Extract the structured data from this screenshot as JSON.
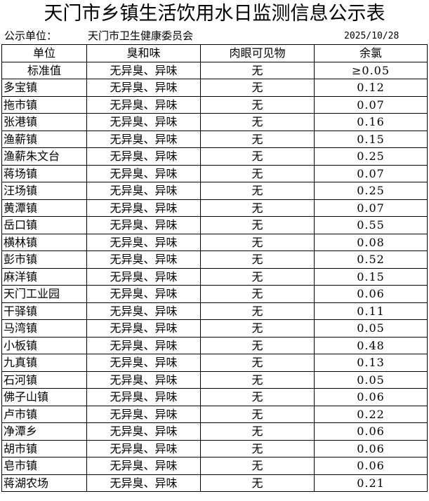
{
  "title": "天门市乡镇生活饮用水日监测信息公示表",
  "info": {
    "unit_label": "公示单位：",
    "unit_value": "天门市卫生健康委员会",
    "date": "2025/10/28"
  },
  "headers": [
    "单位",
    "臭和味",
    "肉眼可见物",
    "余氯"
  ],
  "standard": {
    "name": "标准值",
    "odor": "无异臭、异味",
    "visible": "无",
    "chlorine": "≥0.05"
  },
  "rows": [
    {
      "name": "多宝镇",
      "odor": "无异臭、异味",
      "visible": "无",
      "chlorine": "0.12"
    },
    {
      "name": "拖市镇",
      "odor": "无异臭、异味",
      "visible": "无",
      "chlorine": "0.07"
    },
    {
      "name": "张港镇",
      "odor": "无异臭、异味",
      "visible": "无",
      "chlorine": "0.16"
    },
    {
      "name": "渔薪镇",
      "odor": "无异臭、异味",
      "visible": "无",
      "chlorine": "0.15"
    },
    {
      "name": "渔薪朱文台",
      "odor": "无异臭、异味",
      "visible": "无",
      "chlorine": "0.25"
    },
    {
      "name": "蒋场镇",
      "odor": "无异臭、异味",
      "visible": "无",
      "chlorine": "0.07"
    },
    {
      "name": "汪场镇",
      "odor": "无异臭、异味",
      "visible": "无",
      "chlorine": "0.25"
    },
    {
      "name": "黄潭镇",
      "odor": "无异臭、异味",
      "visible": "无",
      "chlorine": "0.07"
    },
    {
      "name": "岳口镇",
      "odor": "无异臭、异味",
      "visible": "无",
      "chlorine": "0.55"
    },
    {
      "name": "横林镇",
      "odor": "无异臭、异味",
      "visible": "无",
      "chlorine": "0.08"
    },
    {
      "name": "彭市镇",
      "odor": "无异臭、异味",
      "visible": "无",
      "chlorine": "0.52"
    },
    {
      "name": "麻洋镇",
      "odor": "无异臭、异味",
      "visible": "无",
      "chlorine": "0.15"
    },
    {
      "name": "天门工业园",
      "odor": "无异臭、异味",
      "visible": "无",
      "chlorine": "0.06"
    },
    {
      "name": "干驿镇",
      "odor": "无异臭、异味",
      "visible": "无",
      "chlorine": "0.11"
    },
    {
      "name": "马湾镇",
      "odor": "无异臭、异味",
      "visible": "无",
      "chlorine": "0.05"
    },
    {
      "name": "小板镇",
      "odor": "无异臭、异味",
      "visible": "无",
      "chlorine": "0.48"
    },
    {
      "name": "九真镇",
      "odor": "无异臭、异味",
      "visible": "无",
      "chlorine": "0.13"
    },
    {
      "name": "石河镇",
      "odor": "无异臭、异味",
      "visible": "无",
      "chlorine": "0.05"
    },
    {
      "name": "佛子山镇",
      "odor": "无异臭、异味",
      "visible": "无",
      "chlorine": "0.06"
    },
    {
      "name": "卢市镇",
      "odor": "无异臭、异味",
      "visible": "无",
      "chlorine": "0.22"
    },
    {
      "name": "净潭乡",
      "odor": "无异臭、异味",
      "visible": "无",
      "chlorine": "0.06"
    },
    {
      "name": "胡市镇",
      "odor": "无异臭、异味",
      "visible": "无",
      "chlorine": "0.06"
    },
    {
      "name": "皂市镇",
      "odor": "无异臭、异味",
      "visible": "无",
      "chlorine": "0.06"
    },
    {
      "name": "蒋湖农场",
      "odor": "无异臭、异味",
      "visible": "无",
      "chlorine": "0.21"
    }
  ]
}
